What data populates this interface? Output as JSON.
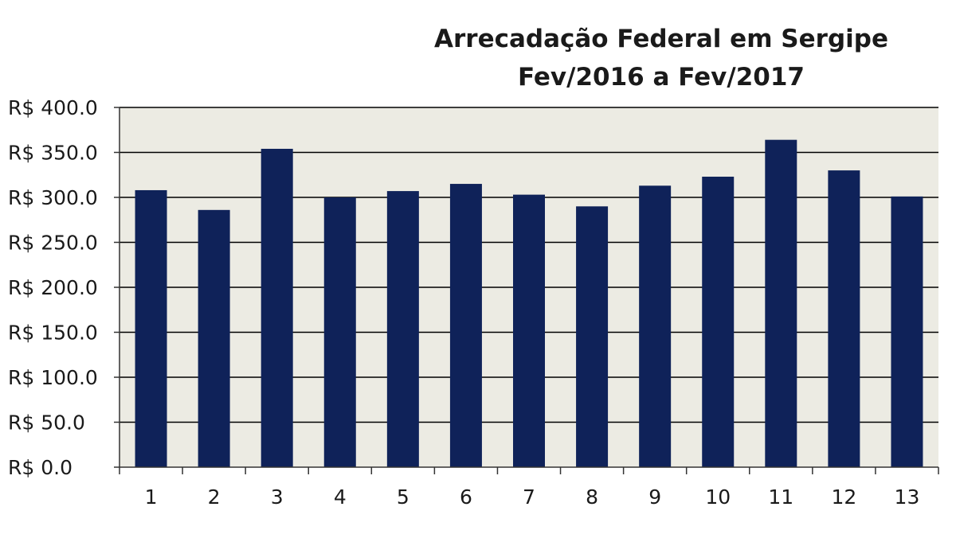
{
  "chart_data": {
    "type": "bar",
    "title": "Arrecadação Federal em Sergipe",
    "subtitle": "Fev/2016 a Fev/2017",
    "xlabel": "",
    "ylabel": "",
    "categories": [
      "1",
      "2",
      "3",
      "4",
      "5",
      "6",
      "7",
      "8",
      "9",
      "10",
      "11",
      "12",
      "13"
    ],
    "values": [
      308,
      286,
      354,
      300,
      307,
      315,
      303,
      290,
      313,
      323,
      364,
      330,
      301
    ],
    "ylim": [
      0,
      400
    ],
    "y_ticks": [
      0,
      50,
      100,
      150,
      200,
      250,
      300,
      350,
      400
    ],
    "y_tick_labels": [
      "R$ 0.0",
      "R$ 50.0",
      "R$ 100.0",
      "R$ 150.0",
      "R$ 200.0",
      "R$ 250.0",
      "R$ 300.0",
      "R$ 350.0",
      "R$ 400.0"
    ],
    "grid": true,
    "legend": "none",
    "colors": {
      "bar": "#0f2259",
      "plot_background": "#ecebe3",
      "gridline": "#000000",
      "axis": "#333333"
    }
  }
}
